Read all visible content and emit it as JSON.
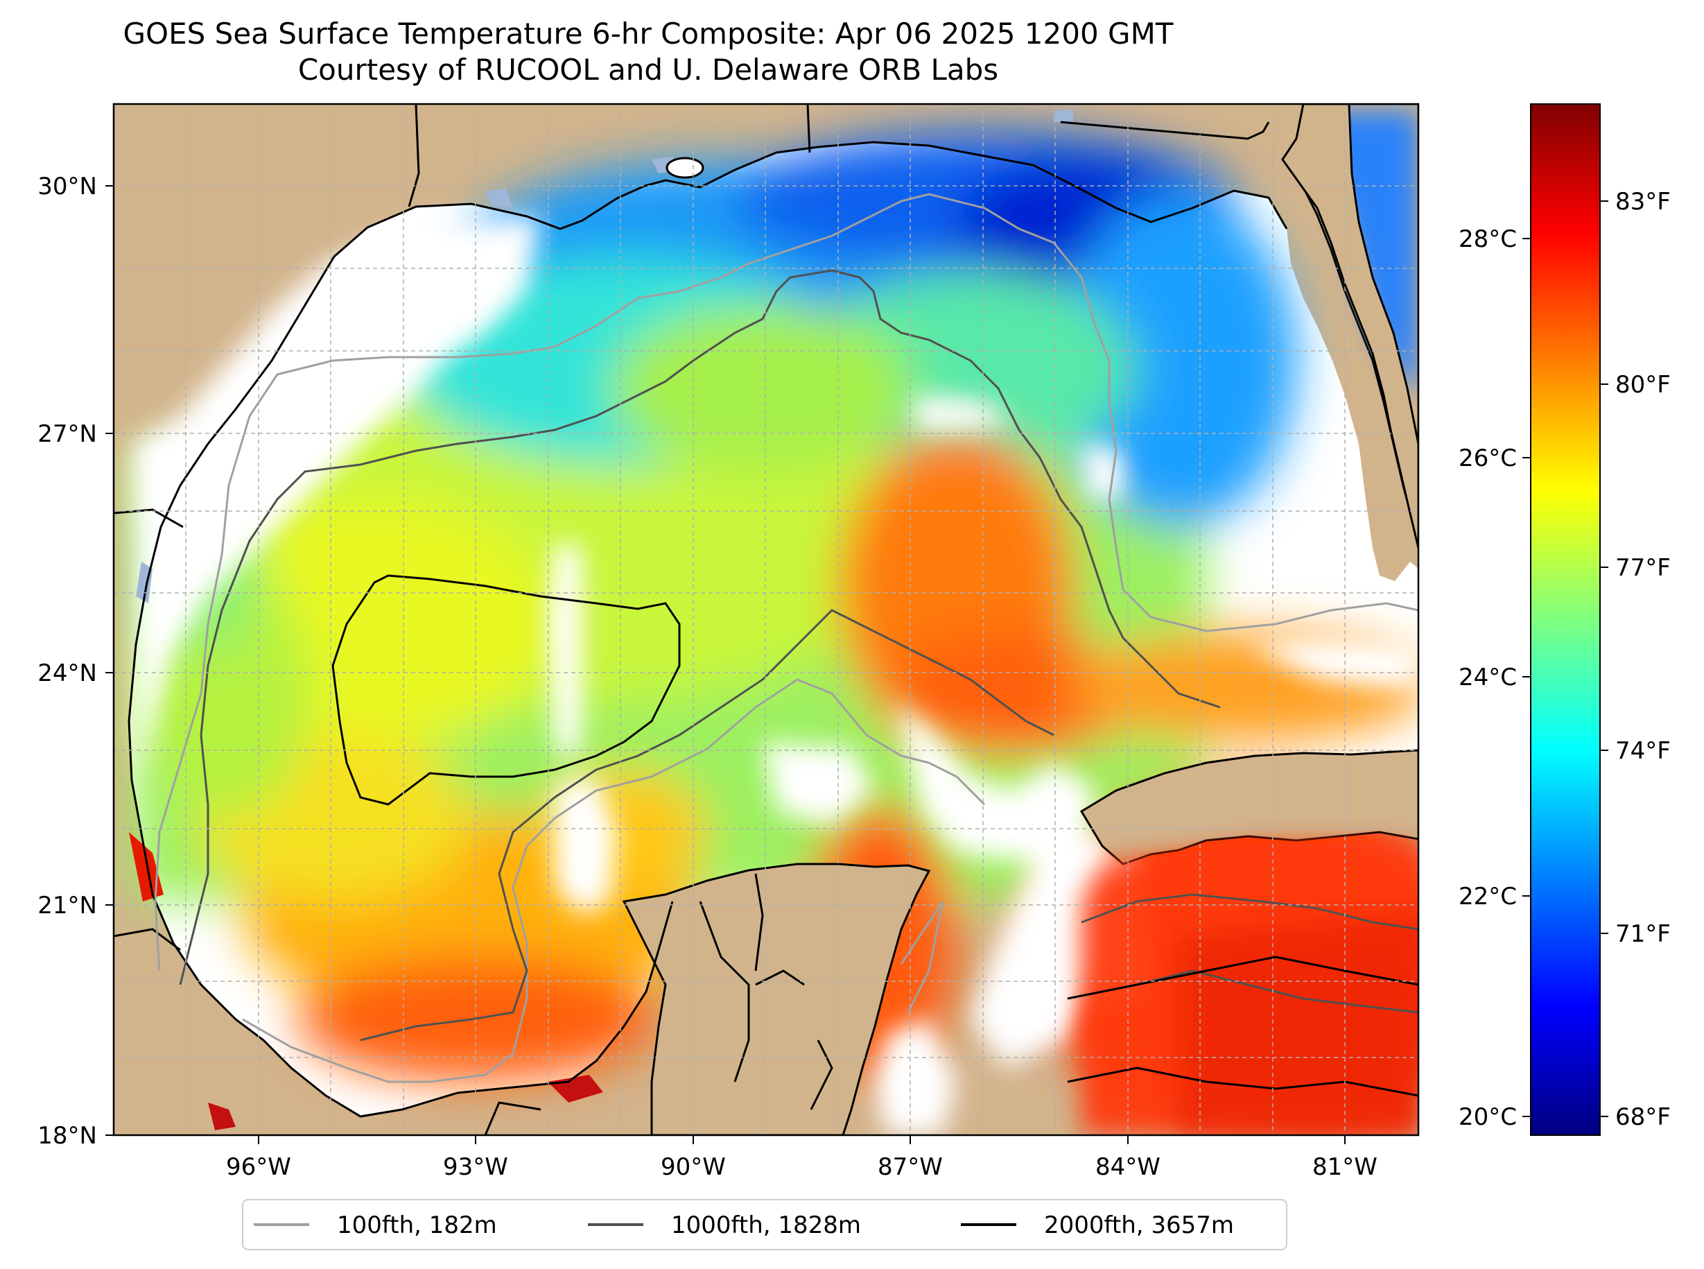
{
  "title": {
    "line1": "GOES Sea Surface Temperature 6-hr Composite: Apr 06 2025 1200 GMT",
    "line2": "Courtesy of RUCOOL and U. Delaware ORB Labs"
  },
  "map": {
    "lon_range": [
      -98,
      -80
    ],
    "lat_range": [
      18,
      31
    ],
    "lon_ticks": [
      "96°W",
      "93°W",
      "90°W",
      "87°W",
      "84°W",
      "81°W"
    ],
    "lat_ticks": [
      "30°N",
      "27°N",
      "24°N",
      "21°N",
      "18°N"
    ],
    "grid": true,
    "colors": {
      "land": "#d2b48c",
      "no_data": "#ffffff",
      "coastline": "#000000",
      "inland_water": "#9fb6d9"
    }
  },
  "colorbar": {
    "colormap": "jet",
    "celsius_ticks": [
      "28°C",
      "26°C",
      "24°C",
      "22°C",
      "20°C"
    ],
    "fahrenheit_ticks": [
      "83°F",
      "80°F",
      "77°F",
      "74°F",
      "71°F",
      "68°F"
    ]
  },
  "legend": {
    "position": "bottom-center",
    "items": [
      {
        "label": "100fth, 182m",
        "color": "#a0a0a0"
      },
      {
        "label": "1000fth, 1828m",
        "color": "#505050"
      },
      {
        "label": "2000fth, 3657m",
        "color": "#000000"
      }
    ]
  }
}
